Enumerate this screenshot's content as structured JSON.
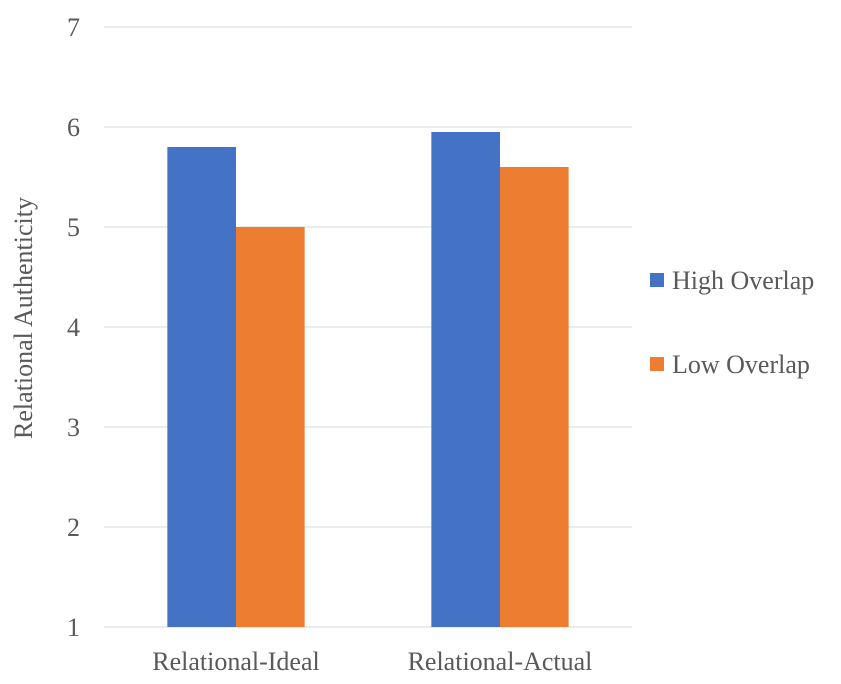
{
  "chart_data": {
    "type": "bar",
    "title": "",
    "xlabel": "",
    "ylabel": "Relational Authenticity",
    "ylim": [
      1,
      7
    ],
    "yticks": [
      1,
      2,
      3,
      4,
      5,
      6,
      7
    ],
    "grid": true,
    "legend_position": "right",
    "categories": [
      "Relational-Ideal",
      "Relational-Actual"
    ],
    "series": [
      {
        "name": "High Overlap",
        "color": "#4472C4",
        "values": [
          5.8,
          5.95
        ]
      },
      {
        "name": "Low Overlap",
        "color": "#ED7D31",
        "values": [
          5.0,
          5.6
        ]
      }
    ]
  }
}
